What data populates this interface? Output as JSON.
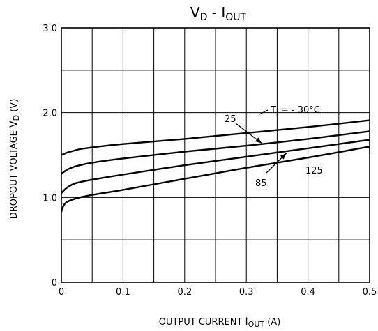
{
  "chart_data": {
    "type": "line",
    "title": {
      "main": "V",
      "main_sub": "D",
      "sep": "-",
      "rhs": "I",
      "rhs_sub": "OUT"
    },
    "xlabel": {
      "text": "OUTPUT CURRENT",
      "sym": "I",
      "sym_sub": "OUT",
      "unit": "(A)"
    },
    "ylabel": {
      "text": "DROPOUT VOLTAGE",
      "sym": "V",
      "sym_sub": "D",
      "unit": "(V)"
    },
    "xlim": [
      0,
      0.5
    ],
    "ylim": [
      0,
      3.0
    ],
    "x_ticks": [
      0,
      0.1,
      0.2,
      0.3,
      0.4,
      0.5
    ],
    "x_tick_labels": [
      "0",
      "0.1",
      "0.2",
      "0.3",
      "0.4",
      "0.5"
    ],
    "y_ticks": [
      0,
      1.0,
      2.0,
      3.0
    ],
    "y_tick_labels": [
      "0",
      "1.0",
      "2.0",
      "3.0"
    ],
    "grid": true,
    "series": [
      {
        "name": "-30°C",
        "x": [
          0,
          0.01,
          0.02,
          0.03,
          0.05,
          0.1,
          0.2,
          0.3,
          0.4,
          0.5
        ],
        "values": [
          1.5,
          1.53,
          1.55,
          1.57,
          1.59,
          1.63,
          1.69,
          1.76,
          1.83,
          1.91
        ]
      },
      {
        "name": "25",
        "x": [
          0,
          0.01,
          0.02,
          0.03,
          0.05,
          0.1,
          0.2,
          0.3,
          0.4,
          0.5
        ],
        "values": [
          1.28,
          1.33,
          1.36,
          1.38,
          1.41,
          1.46,
          1.54,
          1.61,
          1.69,
          1.78
        ]
      },
      {
        "name": "85",
        "x": [
          0,
          0.005,
          0.01,
          0.02,
          0.03,
          0.05,
          0.1,
          0.2,
          0.3,
          0.4,
          0.5
        ],
        "values": [
          1.05,
          1.09,
          1.12,
          1.16,
          1.18,
          1.21,
          1.27,
          1.38,
          1.48,
          1.58,
          1.68
        ]
      },
      {
        "name": "125",
        "x": [
          0,
          0.002,
          0.005,
          0.01,
          0.02,
          0.03,
          0.05,
          0.1,
          0.2,
          0.3,
          0.4,
          0.5
        ],
        "values": [
          0.83,
          0.88,
          0.92,
          0.95,
          0.98,
          1.0,
          1.03,
          1.09,
          1.22,
          1.35,
          1.47,
          1.6
        ]
      }
    ],
    "annotations": {
      "tj_prefix": "T",
      "tj_sub": "j",
      "tj_rest": " =  - 30°C",
      "label_25": "25",
      "label_85": "85",
      "label_125": "125"
    }
  }
}
